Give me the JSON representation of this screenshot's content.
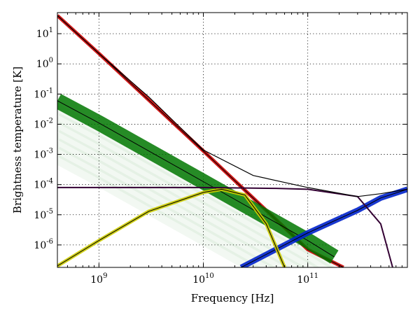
{
  "chart_data": {
    "type": "line",
    "xscale": "log",
    "yscale": "log",
    "xlim": [
      400000000.0,
      900000000000.0
    ],
    "ylim": [
      1.8e-07,
      50
    ],
    "xlabel": "Frequency [Hz]",
    "ylabel": "Brightness temperature [K]",
    "grid": true,
    "xticks": [
      {
        "value": 1000000000.0,
        "mantissa": "10",
        "exponent": "9"
      },
      {
        "value": 10000000000.0,
        "mantissa": "10",
        "exponent": "10"
      },
      {
        "value": 100000000000.0,
        "mantissa": "10",
        "exponent": "11"
      }
    ],
    "yticks": [
      {
        "value": 10,
        "mantissa": "10",
        "exponent": "1"
      },
      {
        "value": 1,
        "mantissa": "10",
        "exponent": "0"
      },
      {
        "value": 0.1,
        "mantissa": "10",
        "exponent": "-1"
      },
      {
        "value": 0.01,
        "mantissa": "10",
        "exponent": "-2"
      },
      {
        "value": 0.001,
        "mantissa": "10",
        "exponent": "-3"
      },
      {
        "value": 0.0001,
        "mantissa": "10",
        "exponent": "-4"
      },
      {
        "value": 1e-05,
        "mantissa": "10",
        "exponent": "-5"
      },
      {
        "value": 1e-06,
        "mantissa": "10",
        "exponent": "-6"
      }
    ],
    "series": [
      {
        "color": "#cc0000",
        "band": true,
        "points": [
          [
            400000000.0,
            40
          ],
          [
            1000000000.0,
            2.2
          ],
          [
            10000000000.0,
            0.0013
          ],
          [
            100000000000.0,
            7e-07
          ],
          [
            220000000000.0,
            1.8e-07
          ]
        ]
      },
      {
        "color": "#007700",
        "band": true,
        "points": [
          [
            400000000.0,
            0.06
          ],
          [
            1000000000.0,
            0.011
          ],
          [
            10000000000.0,
            0.000125
          ],
          [
            100000000000.0,
            1.4e-06
          ],
          [
            180000000000.0,
            4e-07
          ]
        ]
      },
      {
        "color": "#0022cc",
        "band": true,
        "points": [
          [
            23000000000.0,
            1.8e-07
          ],
          [
            100000000000.0,
            2.5e-06
          ],
          [
            300000000000.0,
            1.4e-05
          ],
          [
            500000000000.0,
            3.6e-05
          ],
          [
            900000000000.0,
            7e-05
          ]
        ]
      },
      {
        "color": "#cccc00",
        "band": true,
        "points": [
          [
            400000000.0,
            2e-07
          ],
          [
            1000000000.0,
            1.4e-06
          ],
          [
            3000000000.0,
            1.3e-05
          ],
          [
            10000000000.0,
            5.5e-05
          ],
          [
            15000000000.0,
            7e-05
          ],
          [
            25000000000.0,
            4.5e-05
          ],
          [
            40000000000.0,
            5e-06
          ],
          [
            60000000000.0,
            1.8e-07
          ]
        ]
      },
      {
        "color": "#330033",
        "band": false,
        "points": [
          [
            400000000.0,
            8e-05
          ],
          [
            10000000000.0,
            8e-05
          ],
          [
            50000000000.0,
            7.5e-05
          ],
          [
            100000000000.0,
            7e-05
          ],
          [
            300000000000.0,
            4e-05
          ],
          [
            500000000000.0,
            5e-06
          ],
          [
            650000000000.0,
            1.8e-07
          ]
        ]
      },
      {
        "color": "#000000",
        "band": false,
        "points": [
          [
            400000000.0,
            40
          ],
          [
            1000000000.0,
            2.2
          ],
          [
            3000000000.0,
            0.08
          ],
          [
            10000000000.0,
            0.0014
          ],
          [
            30000000000.0,
            0.0002
          ],
          [
            100000000000.0,
            8e-05
          ],
          [
            300000000000.0,
            4e-05
          ],
          [
            500000000000.0,
            5e-05
          ],
          [
            900000000000.0,
            7e-05
          ]
        ]
      }
    ]
  }
}
